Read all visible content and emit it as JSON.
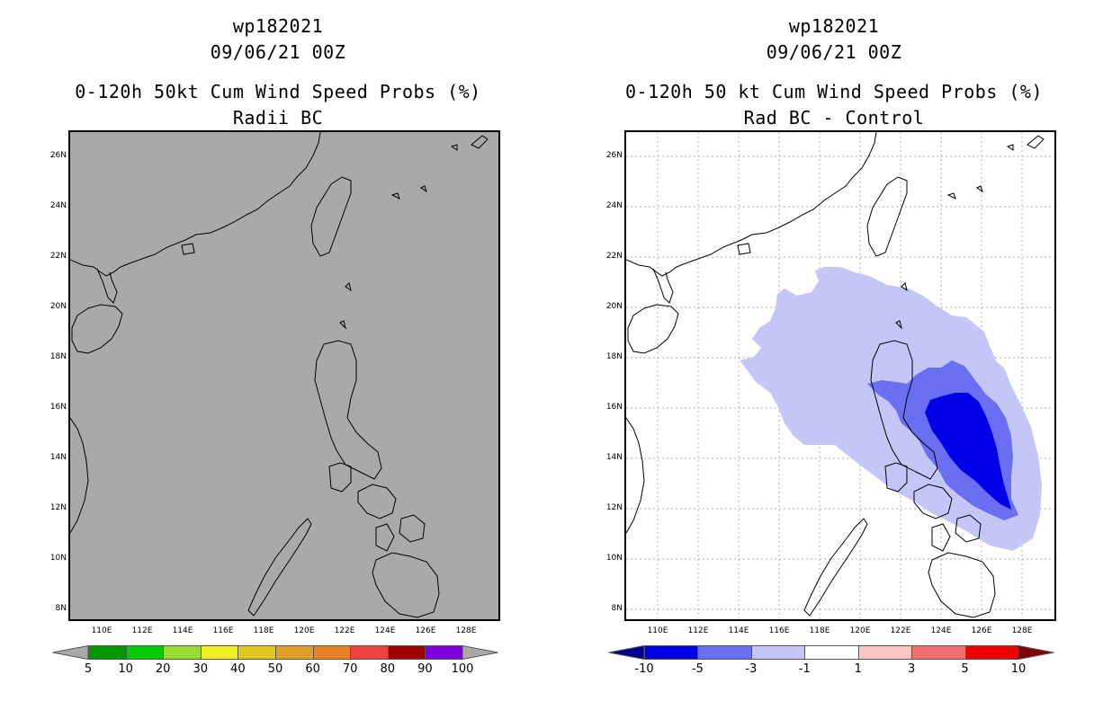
{
  "left": {
    "title1": "wp182021",
    "title2": "09/06/21 00Z",
    "title3": "0-120h 50kt Cum Wind Speed Probs (%)",
    "title4": "Radii BC",
    "background": "#a9a9a9",
    "colorbar": {
      "colors": [
        "#009700",
        "#00cc00",
        "#99dd33",
        "#f0f020",
        "#e0c820",
        "#e0a028",
        "#e88028",
        "#f04040",
        "#a00000",
        "#8000e0"
      ],
      "labels": [
        "5",
        "10",
        "20",
        "30",
        "40",
        "50",
        "60",
        "70",
        "80",
        "90",
        "100"
      ],
      "end_color_low": "#a9a9a9",
      "end_color_high": "#a9a9a9"
    }
  },
  "right": {
    "title1": "wp182021",
    "title2": "09/06/21 00Z",
    "title3": "0-120h 50 kt Cum Wind Speed Probs (%)",
    "title4": "Rad BC - Control",
    "background": "#ffffff",
    "colorbar": {
      "colors": [
        "#0000e8",
        "#6a6ef0",
        "#c4c6f8",
        "#ffffff",
        "#f8c4c4",
        "#f07070",
        "#ee0000"
      ],
      "labels": [
        "-10",
        "-5",
        "-3",
        "-1",
        "1",
        "3",
        "5",
        "10"
      ],
      "end_color_low": "#000090",
      "end_color_high": "#800000"
    },
    "shade_colors": {
      "light": "#c4c6f8",
      "medium": "#6a6ef0",
      "dark": "#0000e8"
    }
  },
  "axes": {
    "lat_labels": [
      "26N",
      "24N",
      "22N",
      "20N",
      "18N",
      "16N",
      "14N",
      "12N",
      "10N",
      "8N"
    ],
    "lon_labels": [
      "110E",
      "112E",
      "114E",
      "116E",
      "118E",
      "120E",
      "122E",
      "124E",
      "126E",
      "128E"
    ]
  }
}
